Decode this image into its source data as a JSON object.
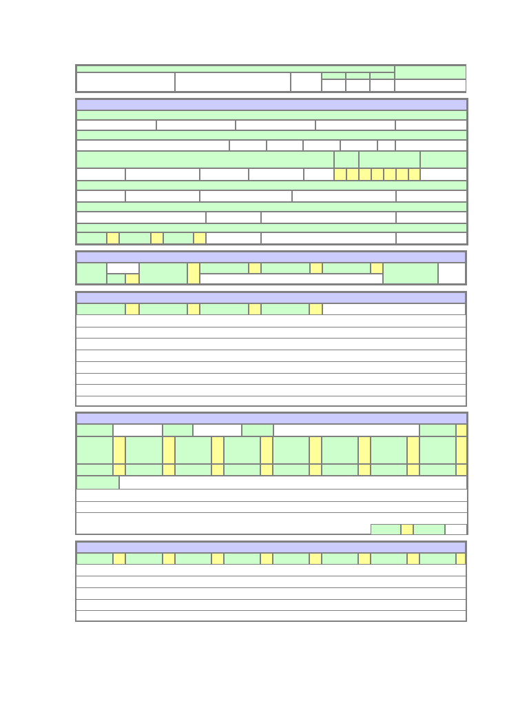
{
  "form": {
    "sections": [
      {
        "name": "header-block"
      },
      {
        "name": "details-block"
      },
      {
        "name": "options-block"
      },
      {
        "name": "list-block-1"
      },
      {
        "name": "grid-block"
      },
      {
        "name": "list-block-2"
      }
    ]
  },
  "colors": {
    "label_cell": "#ccffcc",
    "input_cell": "#ffffff",
    "checkbox_cell": "#ffff99",
    "section_header": "#ccccff",
    "border": "#808080"
  }
}
